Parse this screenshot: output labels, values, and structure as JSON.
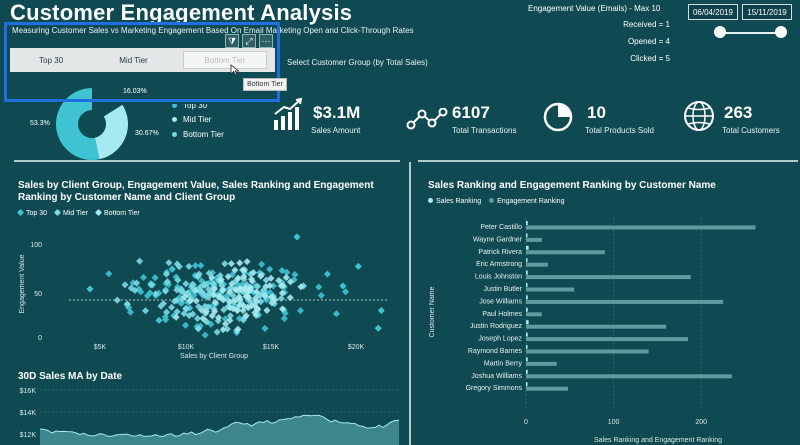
{
  "title": "Customer Engagement Analysis",
  "subtitle": "Measuring Customer Sales vs Marketing Engagement Based On Email Marketing Open and Click-Through Rates",
  "engagement": {
    "label": "Engagement Value (Emails) - Max 10",
    "received": "Received = 1",
    "opened": "Opened = 4",
    "clicked": "Clicked = 5"
  },
  "dates": {
    "start": "06/04/2019",
    "end": "15/11/2019"
  },
  "tiers": {
    "buttons": [
      "Top 30",
      "Mid Tier",
      "Bottom Tier"
    ],
    "selected": "Bottom Tier",
    "tooltip": "Bottom Tier",
    "select_label": "Select Customer Group (by Total Sales)"
  },
  "pie": {
    "labels": {
      "a": "16.03%",
      "b": "53.3%",
      "c": "30.67%"
    },
    "legend": [
      "Top 30",
      "Mid Tier",
      "Bottom Tier"
    ],
    "values": [
      53.3,
      30.67,
      16.03
    ],
    "colors": [
      "#3fc3d3",
      "#a6e9f0",
      "#0f4a52"
    ]
  },
  "kpis": [
    {
      "value": "$3.1M",
      "label": "Sales Amount",
      "icon": "growth-chart-icon"
    },
    {
      "value": "6107",
      "label": "Total Transactions",
      "icon": "network-icon"
    },
    {
      "value": "10",
      "label": "Total Products Sold",
      "icon": "pie-chart-icon"
    },
    {
      "value": "263",
      "label": "Total Customers",
      "icon": "globe-icon"
    }
  ],
  "scatter": {
    "title": "Sales by Client Group, Engagement Value, Sales Ranking and Engagement Ranking by Customer Name and Client Group",
    "legend": [
      "Top 30",
      "Mid Tier",
      "Bottom Tier"
    ],
    "ylabel": "Engagement Value",
    "xlabel": "Sales by Client Group",
    "xticks": [
      "$5K",
      "$10K",
      "$15K",
      "$20K"
    ],
    "yticks": [
      "100",
      "50",
      "0"
    ]
  },
  "ma": {
    "title": "30D Sales MA by Date",
    "yticks": [
      "$16K",
      "$14K",
      "$12K"
    ]
  },
  "bars": {
    "title": "Sales Ranking and Engagement Ranking by Customer Name",
    "legend": [
      "Sales Ranking",
      "Engagement Ranking"
    ],
    "ylabel": "Customer Name",
    "xlabel": "Sales Ranking and Engagement Ranking",
    "xticks": [
      "0",
      "100",
      "200"
    ]
  },
  "chart_data": [
    {
      "type": "bar",
      "title": "Sales Ranking and Engagement Ranking by Customer Name",
      "categories": [
        "Peter Castillo",
        "Wayne Gardner",
        "Patrick Rivera",
        "Eric Armstrong",
        "Louis Johnston",
        "Justin Butler",
        "Jose Williams",
        "Paul Holmes",
        "Justin Rodriguez",
        "Joseph Lopez",
        "Raymond Barnes",
        "Martin Berry",
        "Joshua Williams",
        "Gregory Simmons"
      ],
      "series": [
        {
          "name": "Sales Ranking",
          "values": [
            2,
            1,
            3,
            1,
            2,
            1,
            2,
            2,
            3,
            2,
            1,
            2,
            2,
            1
          ]
        },
        {
          "name": "Engagement Ranking",
          "values": [
            262,
            18,
            90,
            25,
            188,
            55,
            225,
            18,
            160,
            185,
            140,
            35,
            235,
            48
          ]
        }
      ],
      "xlabel": "Sales Ranking and Engagement Ranking",
      "ylabel": "Customer Name",
      "xlim": [
        0,
        290
      ]
    },
    {
      "type": "pie",
      "categories": [
        "Top 30",
        "Mid Tier",
        "Bottom Tier"
      ],
      "values": [
        53.3,
        30.67,
        16.03
      ]
    },
    {
      "type": "scatter",
      "title": "Sales by Client Group, Engagement Value, Sales Ranking and Engagement Ranking by Customer Name and Client Group",
      "xlabel": "Sales by Client Group",
      "ylabel": "Engagement Value",
      "xlim": [
        0,
        22500
      ],
      "ylim": [
        0,
        110
      ]
    },
    {
      "type": "line",
      "title": "30D Sales MA by Date",
      "ylim": [
        12000,
        16000
      ]
    }
  ]
}
